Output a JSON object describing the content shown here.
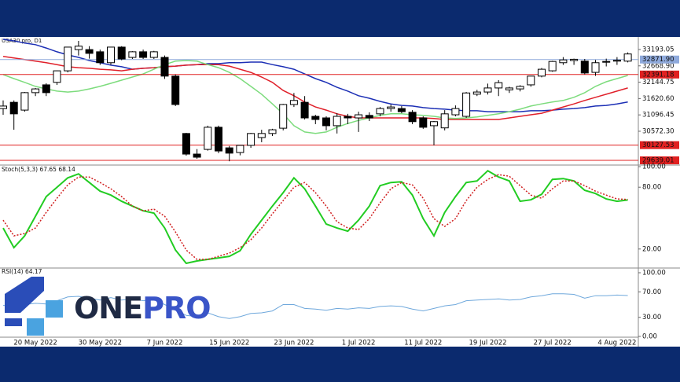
{
  "chart_data": [
    {
      "type": "candlestick",
      "title": "USA30.pro, D1",
      "categories": [
        null,
        null,
        null,
        "20 May 2022",
        null,
        null,
        null,
        null,
        null,
        "30 May 2022",
        null,
        null,
        null,
        null,
        null,
        "7 Jun 2022",
        null,
        null,
        null,
        null,
        null,
        "15 Jun 2022",
        null,
        null,
        null,
        null,
        null,
        "23 Jun 2022",
        null,
        null,
        null,
        null,
        null,
        "1 Jul 2022",
        null,
        null,
        null,
        null,
        null,
        "11 Jul 2022",
        null,
        null,
        null,
        null,
        null,
        "19 Jul 2022",
        null,
        null,
        null,
        null,
        null,
        "27 Jul 2022",
        null,
        null,
        null,
        null,
        null,
        "4 Aug 2022",
        null
      ],
      "open": [
        31300,
        31500,
        31250,
        31810,
        32060,
        32140,
        32510,
        33190,
        33190,
        33120,
        32770,
        33270,
        32940,
        33120,
        32940,
        32940,
        32340,
        30500,
        29840,
        29990,
        30700,
        30040,
        29890,
        30120,
        30370,
        30500,
        30670,
        31430,
        31500,
        31050,
        31000,
        30750,
        31050,
        31000,
        31080,
        31130,
        31300,
        31300,
        31180,
        31000,
        30750,
        30680,
        31100,
        31050,
        31760,
        31830,
        31960,
        31900,
        31930,
        32060,
        32340,
        32510,
        32770,
        32840,
        32820,
        32460,
        32790,
        32820,
        32820
      ],
      "high": [
        31560,
        31560,
        31830,
        31960,
        32110,
        32520,
        33270,
        33470,
        33300,
        33190,
        33270,
        33300,
        33140,
        33190,
        33150,
        33000,
        32390,
        30520,
        30000,
        30750,
        30750,
        30100,
        30120,
        30520,
        30620,
        30650,
        31450,
        31800,
        31700,
        31100,
        31050,
        31150,
        31130,
        31200,
        31180,
        31350,
        31430,
        31380,
        31250,
        31050,
        30900,
        31250,
        31400,
        31830,
        31900,
        32100,
        32210,
        32000,
        32050,
        32350,
        32600,
        32830,
        32950,
        32900,
        32890,
        32860,
        32900,
        32950,
        33100
      ],
      "low": [
        31100,
        30620,
        31200,
        31700,
        31700,
        32060,
        32460,
        33000,
        32900,
        32700,
        32700,
        32850,
        32890,
        32890,
        32890,
        32250,
        31380,
        29790,
        29690,
        29950,
        29870,
        29610,
        29800,
        30040,
        30220,
        30420,
        30600,
        31350,
        30950,
        30800,
        30600,
        30500,
        30800,
        30550,
        30900,
        31050,
        31200,
        31150,
        30800,
        30650,
        30120,
        30600,
        31050,
        31000,
        31700,
        31750,
        31700,
        31800,
        31850,
        32000,
        32300,
        32480,
        32700,
        32700,
        32400,
        32350,
        32650,
        32700,
        32780
      ],
      "close": [
        31380,
        31130,
        31810,
        31930,
        31810,
        32510,
        33270,
        33300,
        33070,
        32770,
        33270,
        32890,
        33120,
        32940,
        33120,
        32340,
        31430,
        29840,
        29740,
        30700,
        29940,
        29870,
        30120,
        30500,
        30500,
        30620,
        31430,
        31560,
        31000,
        30950,
        30750,
        31050,
        31000,
        31100,
        31000,
        31300,
        31350,
        31200,
        30880,
        30700,
        30880,
        31130,
        31300,
        31800,
        31830,
        31960,
        32130,
        31960,
        32010,
        32340,
        32560,
        32810,
        32860,
        32880,
        32440,
        32770,
        32810,
        32850,
        33050
      ],
      "up_color": "#ffffff",
      "down_color": "#000000",
      "lines": [
        {
          "color": "#1c2fb5",
          "values": [
            33520,
            33470,
            33400,
            33350,
            33240,
            33120,
            33020,
            32940,
            32840,
            32770,
            32690,
            32640,
            32560,
            32590,
            32610,
            32640,
            32660,
            32690,
            32710,
            32740,
            32740,
            32770,
            32770,
            32790,
            32790,
            32710,
            32640,
            32560,
            32410,
            32260,
            32140,
            31980,
            31860,
            31710,
            31630,
            31530,
            31450,
            31400,
            31380,
            31330,
            31300,
            31280,
            31250,
            31230,
            31230,
            31200,
            31200,
            31200,
            31200,
            31230,
            31230,
            31250,
            31280,
            31300,
            31330,
            31380,
            31400,
            31450,
            31510
          ]
        },
        {
          "color": "#e0202a",
          "values": [
            32970,
            32920,
            32870,
            32820,
            32770,
            32710,
            32640,
            32610,
            32590,
            32560,
            32540,
            32510,
            32560,
            32590,
            32610,
            32640,
            32660,
            32690,
            32710,
            32710,
            32710,
            32660,
            32560,
            32460,
            32310,
            32140,
            31880,
            31710,
            31510,
            31350,
            31250,
            31130,
            31050,
            31000,
            31000,
            31000,
            31000,
            31000,
            31000,
            31000,
            30980,
            30950,
            30950,
            30950,
            30950,
            30950,
            30950,
            31000,
            31050,
            31100,
            31150,
            31250,
            31350,
            31450,
            31560,
            31660,
            31760,
            31860,
            31960
          ]
        },
        {
          "color": "#7ddc7d",
          "values": [
            32390,
            32260,
            32140,
            32010,
            31930,
            31860,
            31830,
            31860,
            31930,
            32010,
            32110,
            32210,
            32310,
            32410,
            32560,
            32710,
            32820,
            32840,
            32820,
            32710,
            32610,
            32460,
            32260,
            32010,
            31760,
            31450,
            31130,
            30750,
            30550,
            30500,
            30550,
            30700,
            30820,
            30920,
            31000,
            31080,
            31130,
            31130,
            31100,
            31080,
            31050,
            31000,
            30980,
            31000,
            31030,
            31080,
            31130,
            31200,
            31280,
            31380,
            31450,
            31510,
            31560,
            31660,
            31810,
            32010,
            32160,
            32260,
            32360
          ]
        }
      ],
      "levels": [
        {
          "value": 32871.9,
          "label": "32871.90",
          "color": "#8faadc"
        },
        {
          "value": 32391.18,
          "label": "32391.18",
          "color": "#e02020"
        },
        {
          "value": 30127.53,
          "label": "30127.53",
          "color": "#e02020"
        },
        {
          "value": 29639.01,
          "label": "29639.01",
          "color": "#e02020"
        }
      ],
      "ylim": [
        29488,
        33596
      ],
      "yticks": [
        {
          "value": 33193.05,
          "label": "33193.05"
        },
        {
          "value": 32668.9,
          "label": "32668.90"
        },
        {
          "value": 32144.75,
          "label": "32144.75"
        },
        {
          "value": 31620.6,
          "label": "31620.60"
        },
        {
          "value": 31096.45,
          "label": "31096.45"
        },
        {
          "value": 30572.3,
          "label": "30572.30"
        }
      ]
    },
    {
      "type": "line",
      "title": "Stoch(5,3,3) 67.65 68.14",
      "series": [
        {
          "color": "#22cc22",
          "width": 2,
          "values": [
            40.4,
            21.3,
            32.8,
            51.8,
            70.9,
            80,
            89.1,
            93,
            84.6,
            76.2,
            72.4,
            66.3,
            61.7,
            57.1,
            54.9,
            40.4,
            19,
            6.1,
            8.4,
            9.9,
            11.4,
            12.9,
            18.3,
            34.3,
            48,
            61.7,
            74.7,
            89.1,
            78.5,
            61.7,
            44.2,
            40.4,
            37.3,
            48,
            61.7,
            81.5,
            84.6,
            85.3,
            72.4,
            49.5,
            32.8,
            55.6,
            70.9,
            84.6,
            86.1,
            96,
            89.9,
            86.1,
            66.3,
            67.8,
            73.1,
            87.6,
            88.4,
            86.1,
            77,
            73.9,
            68.6,
            66.3,
            67.65
          ]
        },
        {
          "color": "#d02020",
          "width": 1.5,
          "dashed": true,
          "values": [
            48,
            32.8,
            35,
            40.4,
            55.6,
            69.3,
            82.3,
            89.9,
            89.9,
            84.6,
            78.5,
            70.9,
            61.7,
            57.1,
            58.7,
            51.8,
            36.6,
            19,
            9.9,
            9.9,
            12.9,
            16,
            21.3,
            29,
            40.4,
            54.1,
            67,
            80,
            84.6,
            74.7,
            61.7,
            46.5,
            40.4,
            38.9,
            49.5,
            64.8,
            78.5,
            84.6,
            82.3,
            69.3,
            49.5,
            41.9,
            49.5,
            67,
            80,
            87.6,
            92.2,
            90.7,
            81.5,
            72.4,
            69.3,
            78.5,
            86.1,
            86.1,
            81.5,
            76.2,
            72.4,
            68.6,
            68.14
          ]
        }
      ],
      "ylim": [
        0,
        100
      ],
      "yticks": [
        {
          "value": 100,
          "label": "100.00"
        },
        {
          "value": 80,
          "label": "80.00"
        },
        {
          "value": 20,
          "label": "20.00"
        }
      ]
    },
    {
      "type": "line",
      "title": "RSI(14) 64.17",
      "series": [
        {
          "color": "#6fa8dc",
          "width": 1,
          "values": [
            49,
            45,
            50,
            52,
            51,
            56,
            62,
            63,
            60,
            57,
            61,
            57,
            59,
            56,
            58,
            50,
            42,
            33,
            31,
            37,
            31,
            28,
            31,
            36,
            37,
            40,
            50,
            50,
            44,
            43,
            41,
            44,
            43,
            45,
            44,
            47,
            48,
            47,
            43,
            40,
            44,
            48,
            50,
            56,
            57,
            58,
            59,
            57,
            58,
            62,
            64,
            67,
            67,
            66,
            60,
            64,
            64,
            65,
            64.17
          ]
        }
      ],
      "ylim": [
        0,
        100
      ],
      "yticks": [
        {
          "value": 100,
          "label": "100.00"
        },
        {
          "value": 70,
          "label": "70.00"
        },
        {
          "value": 30,
          "label": "30.00"
        },
        {
          "value": 0,
          "label": "0.00"
        }
      ]
    }
  ],
  "logo": [
    "ONE",
    "PRO"
  ]
}
